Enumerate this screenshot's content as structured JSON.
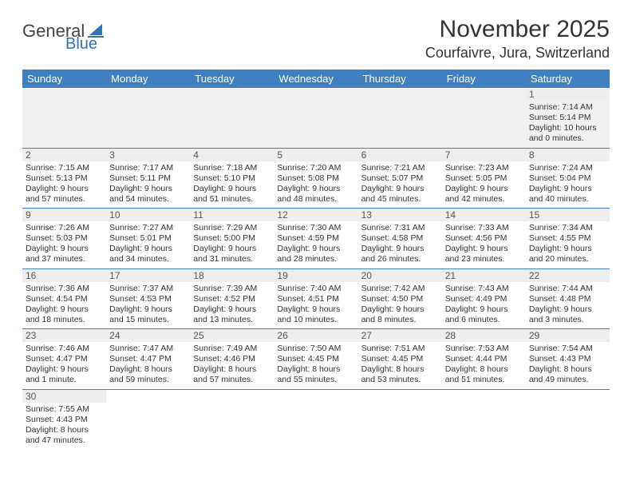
{
  "logo": {
    "text1": "General",
    "text2": "Blue"
  },
  "title": "November 2025",
  "location": "Courfaivre, Jura, Switzerland",
  "weekdays": [
    "Sunday",
    "Monday",
    "Tuesday",
    "Wednesday",
    "Thursday",
    "Friday",
    "Saturday"
  ],
  "colors": {
    "header_bg": "#3e80c1",
    "header_text": "#ffffff",
    "row_divider": "#3e80c1",
    "daynum_bg": "#eeeeee",
    "blank_bg": "#f1f1f1"
  },
  "cells": [
    [
      null,
      null,
      null,
      null,
      null,
      null,
      {
        "n": "1",
        "sr": "7:14 AM",
        "ss": "5:14 PM",
        "dl": "10 hours and 0 minutes."
      }
    ],
    [
      {
        "n": "2",
        "sr": "7:15 AM",
        "ss": "5:13 PM",
        "dl": "9 hours and 57 minutes."
      },
      {
        "n": "3",
        "sr": "7:17 AM",
        "ss": "5:11 PM",
        "dl": "9 hours and 54 minutes."
      },
      {
        "n": "4",
        "sr": "7:18 AM",
        "ss": "5:10 PM",
        "dl": "9 hours and 51 minutes."
      },
      {
        "n": "5",
        "sr": "7:20 AM",
        "ss": "5:08 PM",
        "dl": "9 hours and 48 minutes."
      },
      {
        "n": "6",
        "sr": "7:21 AM",
        "ss": "5:07 PM",
        "dl": "9 hours and 45 minutes."
      },
      {
        "n": "7",
        "sr": "7:23 AM",
        "ss": "5:05 PM",
        "dl": "9 hours and 42 minutes."
      },
      {
        "n": "8",
        "sr": "7:24 AM",
        "ss": "5:04 PM",
        "dl": "9 hours and 40 minutes."
      }
    ],
    [
      {
        "n": "9",
        "sr": "7:26 AM",
        "ss": "5:03 PM",
        "dl": "9 hours and 37 minutes."
      },
      {
        "n": "10",
        "sr": "7:27 AM",
        "ss": "5:01 PM",
        "dl": "9 hours and 34 minutes."
      },
      {
        "n": "11",
        "sr": "7:29 AM",
        "ss": "5:00 PM",
        "dl": "9 hours and 31 minutes."
      },
      {
        "n": "12",
        "sr": "7:30 AM",
        "ss": "4:59 PM",
        "dl": "9 hours and 28 minutes."
      },
      {
        "n": "13",
        "sr": "7:31 AM",
        "ss": "4:58 PM",
        "dl": "9 hours and 26 minutes."
      },
      {
        "n": "14",
        "sr": "7:33 AM",
        "ss": "4:56 PM",
        "dl": "9 hours and 23 minutes."
      },
      {
        "n": "15",
        "sr": "7:34 AM",
        "ss": "4:55 PM",
        "dl": "9 hours and 20 minutes."
      }
    ],
    [
      {
        "n": "16",
        "sr": "7:36 AM",
        "ss": "4:54 PM",
        "dl": "9 hours and 18 minutes."
      },
      {
        "n": "17",
        "sr": "7:37 AM",
        "ss": "4:53 PM",
        "dl": "9 hours and 15 minutes."
      },
      {
        "n": "18",
        "sr": "7:39 AM",
        "ss": "4:52 PM",
        "dl": "9 hours and 13 minutes."
      },
      {
        "n": "19",
        "sr": "7:40 AM",
        "ss": "4:51 PM",
        "dl": "9 hours and 10 minutes."
      },
      {
        "n": "20",
        "sr": "7:42 AM",
        "ss": "4:50 PM",
        "dl": "9 hours and 8 minutes."
      },
      {
        "n": "21",
        "sr": "7:43 AM",
        "ss": "4:49 PM",
        "dl": "9 hours and 6 minutes."
      },
      {
        "n": "22",
        "sr": "7:44 AM",
        "ss": "4:48 PM",
        "dl": "9 hours and 3 minutes."
      }
    ],
    [
      {
        "n": "23",
        "sr": "7:46 AM",
        "ss": "4:47 PM",
        "dl": "9 hours and 1 minute."
      },
      {
        "n": "24",
        "sr": "7:47 AM",
        "ss": "4:47 PM",
        "dl": "8 hours and 59 minutes."
      },
      {
        "n": "25",
        "sr": "7:49 AM",
        "ss": "4:46 PM",
        "dl": "8 hours and 57 minutes."
      },
      {
        "n": "26",
        "sr": "7:50 AM",
        "ss": "4:45 PM",
        "dl": "8 hours and 55 minutes."
      },
      {
        "n": "27",
        "sr": "7:51 AM",
        "ss": "4:45 PM",
        "dl": "8 hours and 53 minutes."
      },
      {
        "n": "28",
        "sr": "7:53 AM",
        "ss": "4:44 PM",
        "dl": "8 hours and 51 minutes."
      },
      {
        "n": "29",
        "sr": "7:54 AM",
        "ss": "4:43 PM",
        "dl": "8 hours and 49 minutes."
      }
    ],
    [
      {
        "n": "30",
        "sr": "7:55 AM",
        "ss": "4:43 PM",
        "dl": "8 hours and 47 minutes."
      },
      null,
      null,
      null,
      null,
      null,
      null
    ]
  ],
  "labels": {
    "sunrise": "Sunrise: ",
    "sunset": "Sunset: ",
    "daylight": "Daylight: "
  }
}
